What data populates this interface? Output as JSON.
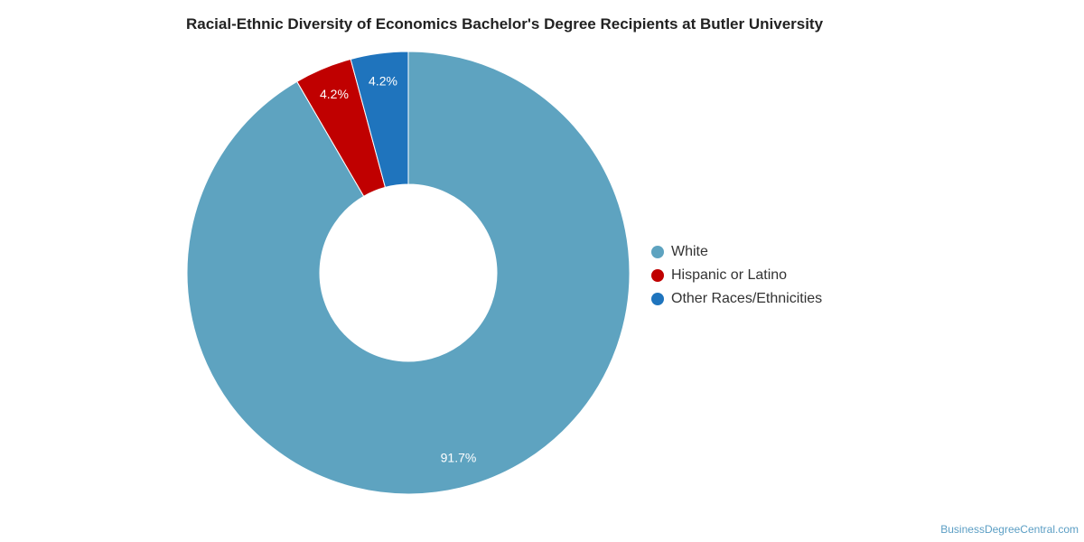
{
  "chart_data": {
    "type": "pie",
    "title": "Racial-Ethnic Diversity of Economics Bachelor's Degree Recipients at Butler University",
    "categories": [
      "White",
      "Hispanic or Latino",
      "Other Races/Ethnicities"
    ],
    "values": [
      91.7,
      4.2,
      4.2
    ],
    "labels": [
      "91.7%",
      "4.2%",
      "4.2%"
    ],
    "colors": [
      "#5ea3c0",
      "#c00000",
      "#1f74bd"
    ],
    "donut": true,
    "legend_position": "right"
  },
  "watermark": "BusinessDegreeCentral.com"
}
